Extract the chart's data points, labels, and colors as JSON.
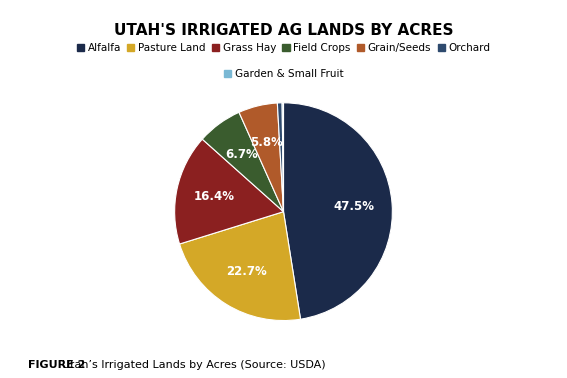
{
  "title": "UTAH'S IRRIGATED AG LANDS BY ACRES",
  "caption_bold": "FIGURE 2 ",
  "caption_normal": "Utah’s Irrigated Lands by Acres (Source: USDA)",
  "slices": [
    {
      "label": "Alfalfa",
      "pct": 47.5,
      "color": "#1b2a4a"
    },
    {
      "label": "Pasture Land",
      "pct": 22.7,
      "color": "#d4a827"
    },
    {
      "label": "Grass Hay",
      "pct": 16.4,
      "color": "#8b2020"
    },
    {
      "label": "Field Crops",
      "pct": 6.7,
      "color": "#3a5c2e"
    },
    {
      "label": "Grain/Seeds",
      "pct": 5.8,
      "color": "#b05a2a"
    },
    {
      "label": "Orchard",
      "pct": 0.7,
      "color": "#2e4a6e"
    },
    {
      "label": "Garden & Small Fruit",
      "pct": 0.2,
      "color": "#7ab8d4"
    }
  ],
  "background_color": "#ffffff",
  "title_fontsize": 11,
  "legend_fontsize": 7.5,
  "caption_fontsize": 8
}
